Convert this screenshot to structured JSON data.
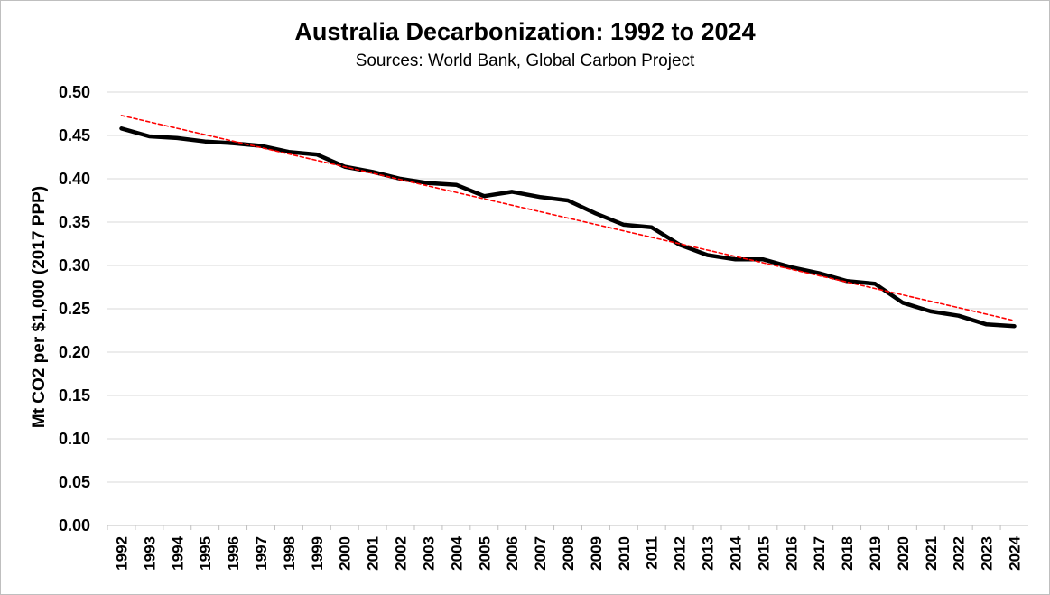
{
  "chart_data": {
    "type": "line",
    "title": "Australia Decarbonization: 1992 to 2024",
    "subtitle": "Sources: World Bank, Global Carbon Project",
    "xlabel": "",
    "ylabel": "Mt CO2 per $1,000 (2017 PPP)",
    "ylim": [
      0.0,
      0.5
    ],
    "yticks": [
      "0.00",
      "0.05",
      "0.10",
      "0.15",
      "0.20",
      "0.25",
      "0.30",
      "0.35",
      "0.40",
      "0.45",
      "0.50"
    ],
    "categories": [
      "1992",
      "1993",
      "1994",
      "1995",
      "1996",
      "1997",
      "1998",
      "1999",
      "2000",
      "2001",
      "2002",
      "2003",
      "2004",
      "2005",
      "2006",
      "2007",
      "2008",
      "2009",
      "2010",
      "2011",
      "2012",
      "2013",
      "2014",
      "2015",
      "2016",
      "2017",
      "2018",
      "2019",
      "2020",
      "2021",
      "2022",
      "2023",
      "2024"
    ],
    "grid": true,
    "legend": "none",
    "series": [
      {
        "name": "CO2 intensity",
        "style": "solid",
        "color": "#000000",
        "values": [
          0.458,
          0.449,
          0.447,
          0.443,
          0.441,
          0.438,
          0.431,
          0.428,
          0.414,
          0.408,
          0.4,
          0.395,
          0.393,
          0.38,
          0.385,
          0.379,
          0.375,
          0.36,
          0.347,
          0.344,
          0.324,
          0.312,
          0.307,
          0.307,
          0.298,
          0.291,
          0.282,
          0.279,
          0.257,
          0.247,
          0.242,
          0.232,
          0.23
        ]
      },
      {
        "name": "Linear trend",
        "style": "dashed",
        "color": "#ff0000",
        "values": [
          0.473,
          0.4656,
          0.4582,
          0.4508,
          0.4434,
          0.436,
          0.4286,
          0.4212,
          0.4139,
          0.4065,
          0.3991,
          0.3917,
          0.3843,
          0.3769,
          0.3695,
          0.3621,
          0.3547,
          0.3473,
          0.3399,
          0.3325,
          0.3251,
          0.3177,
          0.3104,
          0.303,
          0.2956,
          0.2882,
          0.2808,
          0.2734,
          0.266,
          0.2586,
          0.2512,
          0.2438,
          0.2364
        ]
      }
    ]
  }
}
